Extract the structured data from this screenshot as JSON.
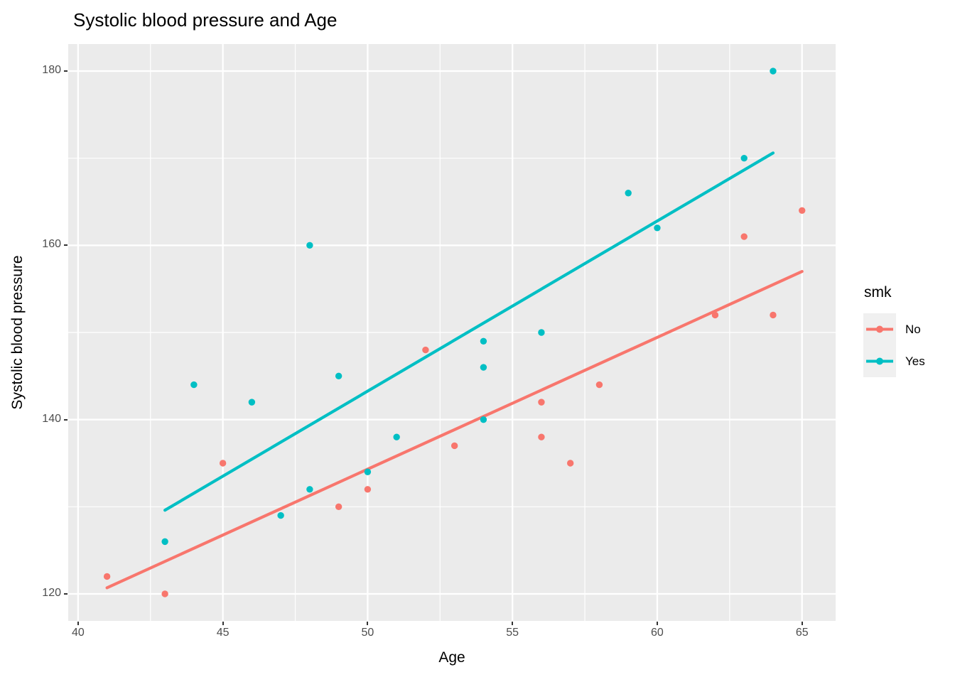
{
  "title": "Systolic blood pressure and Age",
  "x_axis": {
    "label": "Age"
  },
  "y_axis": {
    "label": "Systolic blood pressure"
  },
  "legend": {
    "title": "smk",
    "entries": [
      {
        "label": "No",
        "color": "#F8766D"
      },
      {
        "label": "Yes",
        "color": "#00BFC4"
      }
    ]
  },
  "style": {
    "panel_bg": "#EBEBEB",
    "grid_color": "#FFFFFF",
    "tick_text_color": "#4D4D4D",
    "tick_mark_color": "#333333",
    "text_color": "#000000",
    "legend_key_bg": "#F0F0F0"
  },
  "chart_data": {
    "type": "scatter",
    "title": "Systolic blood pressure and Age",
    "xlabel": "Age",
    "ylabel": "Systolic blood pressure",
    "xlim": [
      39.66,
      66.16
    ],
    "ylim": [
      116.9,
      183.1
    ],
    "x_major_ticks": [
      40,
      45,
      50,
      55,
      60,
      65
    ],
    "x_minor_ticks": [
      42.5,
      47.5,
      52.5,
      57.5,
      62.5
    ],
    "y_major_ticks": [
      120,
      140,
      160,
      180
    ],
    "y_minor_ticks": [
      130,
      150,
      170
    ],
    "grid": true,
    "legend_position": "right",
    "legend_title": "smk",
    "series": [
      {
        "name": "No",
        "color": "#F8766D",
        "points": [
          [
            41,
            122
          ],
          [
            43,
            120
          ],
          [
            45,
            135
          ],
          [
            49,
            130
          ],
          [
            50,
            132
          ],
          [
            52,
            148
          ],
          [
            53,
            137
          ],
          [
            56,
            138
          ],
          [
            56,
            142
          ],
          [
            57,
            135
          ],
          [
            58,
            144
          ],
          [
            62,
            152
          ],
          [
            63,
            161
          ],
          [
            64,
            152
          ],
          [
            65,
            164
          ]
        ],
        "trend_line": {
          "type": "lm",
          "x": [
            41,
            65
          ],
          "y": [
            120.7,
            157.0
          ]
        }
      },
      {
        "name": "Yes",
        "color": "#00BFC4",
        "points": [
          [
            43,
            126
          ],
          [
            44,
            144
          ],
          [
            46,
            142
          ],
          [
            47,
            129
          ],
          [
            48,
            132
          ],
          [
            48,
            160
          ],
          [
            49,
            145
          ],
          [
            50,
            134
          ],
          [
            51,
            138
          ],
          [
            54,
            140
          ],
          [
            54,
            146
          ],
          [
            54,
            149
          ],
          [
            56,
            150
          ],
          [
            59,
            166
          ],
          [
            60,
            162
          ],
          [
            63,
            170
          ],
          [
            64,
            180
          ]
        ],
        "trend_line": {
          "type": "lm",
          "x": [
            43,
            64
          ],
          "y": [
            129.6,
            170.6
          ]
        }
      }
    ]
  }
}
